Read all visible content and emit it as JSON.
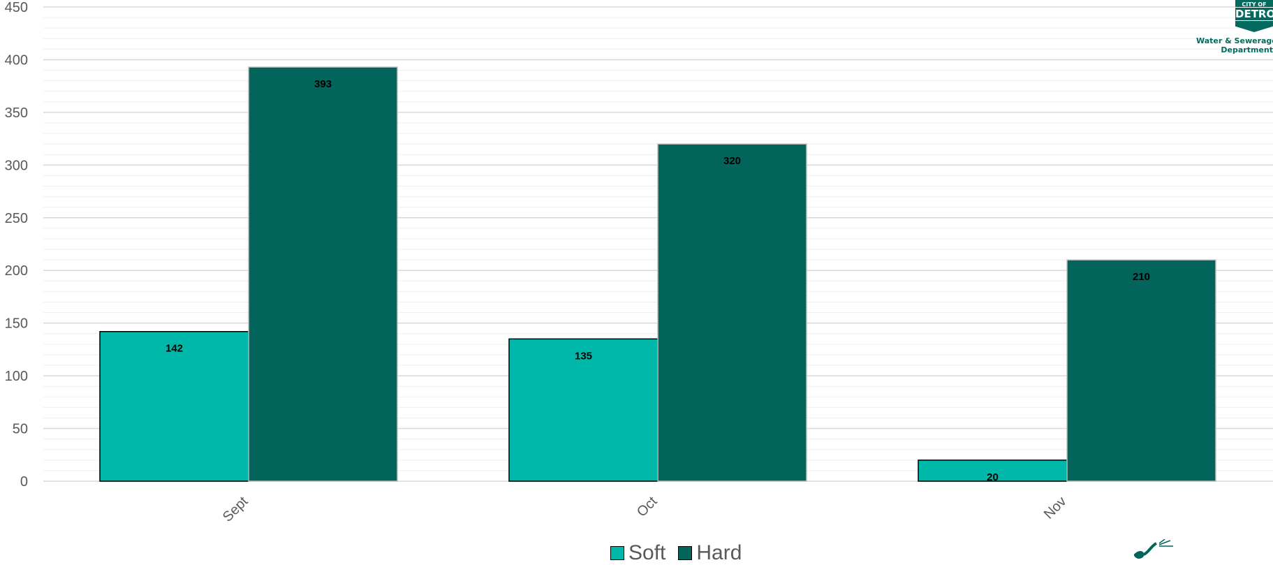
{
  "chart_data": {
    "type": "bar",
    "title": "",
    "xlabel": "",
    "ylabel": "",
    "categories": [
      "Sept",
      "Oct",
      "Nov"
    ],
    "series": [
      {
        "name": "Soft",
        "values": [
          142,
          135,
          20
        ],
        "color": "#00b8a9"
      },
      {
        "name": "Hard",
        "values": [
          393,
          320,
          210
        ],
        "color": "#02645a"
      }
    ],
    "ylim": [
      0,
      450
    ],
    "yticks": [
      0,
      50,
      100,
      150,
      200,
      250,
      300,
      350,
      400,
      450
    ],
    "grid": true,
    "legend_position": "bottom",
    "data_labels": true
  },
  "logo": {
    "city_of": "CITY OF",
    "name": "DETROIT",
    "subtitle": "Water & Sewerage\nDepartment"
  }
}
